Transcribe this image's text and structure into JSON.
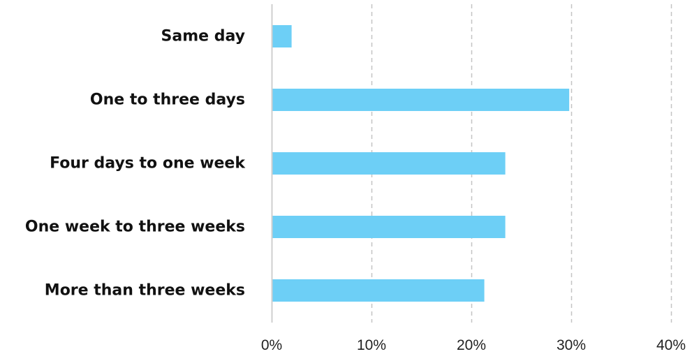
{
  "chart_data": {
    "type": "bar",
    "orientation": "horizontal",
    "categories": [
      "Same day",
      "One to three days",
      "Four days to one week",
      "One week to three weeks",
      "More than three weeks"
    ],
    "values": [
      2,
      29.8,
      23.4,
      23.4,
      21.3
    ],
    "xlim": [
      0,
      40
    ],
    "xticks": [
      0,
      10,
      20,
      30,
      40
    ],
    "tick_labels": [
      "0%",
      "10%",
      "20%",
      "30%",
      "40%"
    ],
    "grid": "vertical dashed",
    "title": "",
    "xlabel": "",
    "ylabel": ""
  },
  "colors": {
    "bar": "#6DCFF6",
    "grid": "#c4c4c4",
    "axis": "#cfcfcf",
    "label": "#111111"
  }
}
